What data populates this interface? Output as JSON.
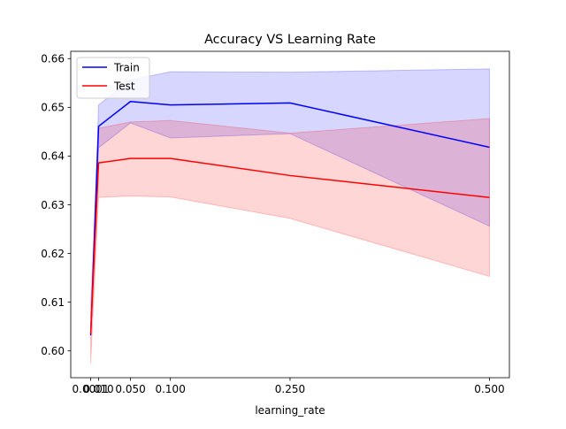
{
  "chart_data": {
    "type": "line",
    "title": "Accuracy VS Learning Rate",
    "xlabel": "learning_rate",
    "ylabel": "",
    "x": [
      0.0001,
      0.01,
      0.05,
      0.1,
      0.25,
      0.5
    ],
    "xticks": [
      0.0001,
      0.01,
      0.05,
      0.1,
      0.25,
      0.5
    ],
    "xtick_labels": [
      "0.0001",
      "0.010",
      "0.050",
      "0.100",
      "0.250",
      "0.500"
    ],
    "yticks": [
      0.6,
      0.61,
      0.62,
      0.63,
      0.64,
      0.65,
      0.66
    ],
    "ytick_labels": [
      "0.60",
      "0.61",
      "0.62",
      "0.63",
      "0.64",
      "0.65",
      "0.66"
    ],
    "xlim": [
      -0.0249,
      0.525
    ],
    "ylim": [
      0.5945,
      0.6615
    ],
    "grid": false,
    "legend_position": "top-left",
    "series": [
      {
        "name": "Train",
        "color": "#0000ff",
        "band_color": "#0000ff",
        "values": [
          0.6032,
          0.6461,
          0.6512,
          0.6505,
          0.6509,
          0.6418
        ],
        "band_lower": [
          0.6032,
          0.6417,
          0.6468,
          0.6437,
          0.6446,
          0.6256
        ],
        "band_upper": [
          0.6032,
          0.6505,
          0.6556,
          0.6573,
          0.6572,
          0.6579
        ]
      },
      {
        "name": "Test",
        "color": "#ff0000",
        "band_color": "#ff0000",
        "values": [
          0.6035,
          0.6386,
          0.6395,
          0.6395,
          0.636,
          0.6315
        ],
        "band_lower": [
          0.5975,
          0.6315,
          0.6318,
          0.6316,
          0.6272,
          0.6153
        ],
        "band_upper": [
          0.6095,
          0.6457,
          0.647,
          0.6473,
          0.6447,
          0.6477
        ]
      }
    ]
  }
}
